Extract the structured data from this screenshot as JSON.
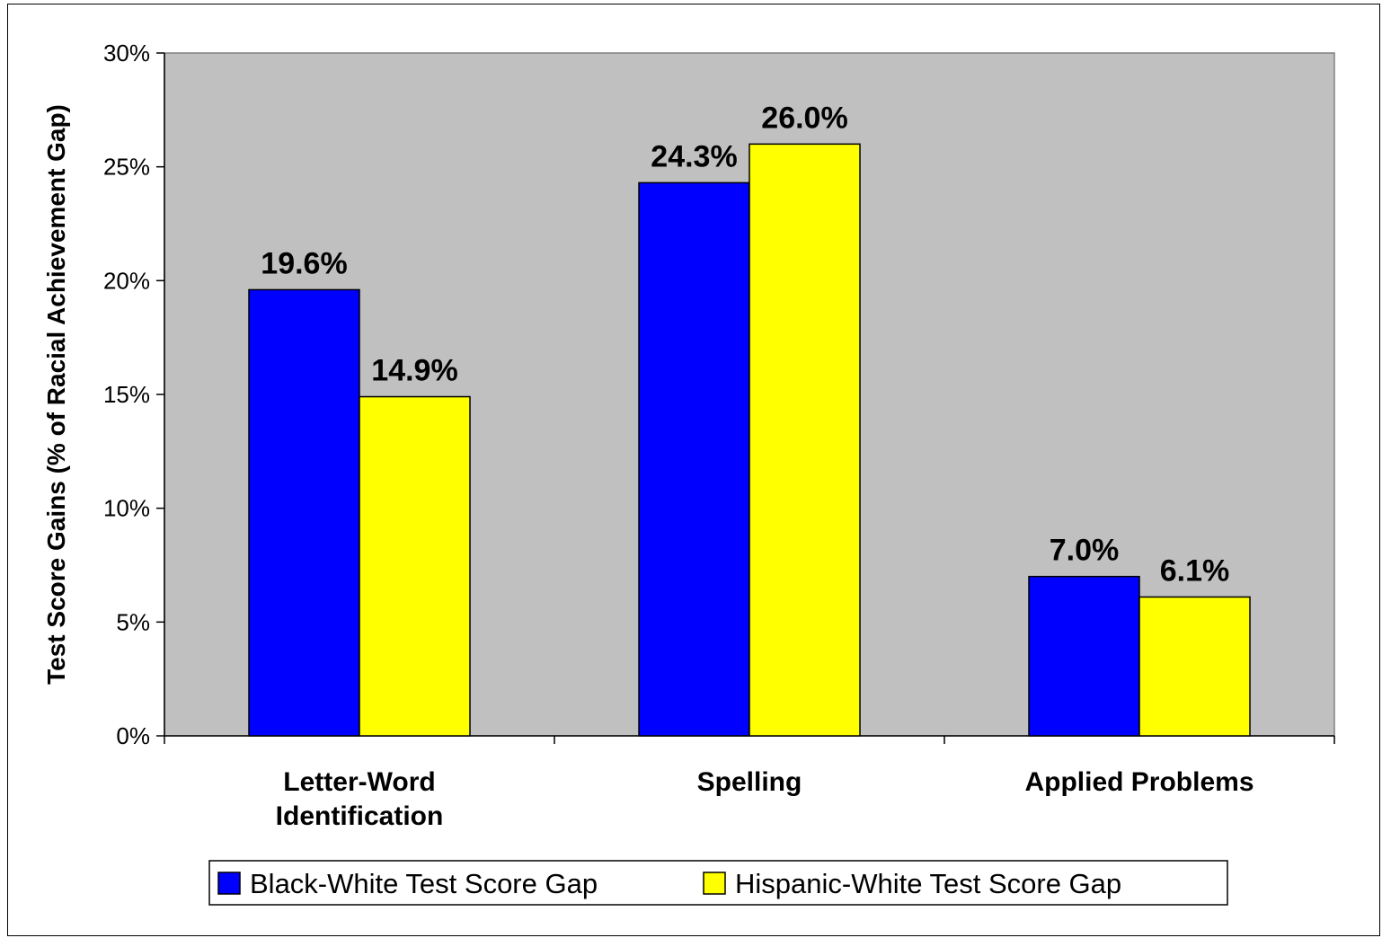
{
  "chart_data": {
    "type": "bar",
    "title": "",
    "xlabel": "",
    "ylabel": "Test Score Gains (% of Racial Achievement Gap)",
    "categories": [
      [
        "Letter-Word",
        "Identification"
      ],
      [
        "Spelling"
      ],
      [
        "Applied Problems"
      ]
    ],
    "series": [
      {
        "name": "Black-White Test Score Gap",
        "color": "#0000ff",
        "values": [
          19.6,
          24.3,
          7.0
        ],
        "labels": [
          "19.6%",
          "24.3%",
          "7.0%"
        ]
      },
      {
        "name": "Hispanic-White Test Score Gap",
        "color": "#ffff00",
        "values": [
          14.9,
          26.0,
          6.1
        ],
        "labels": [
          "14.9%",
          "26.0%",
          "6.1%"
        ]
      }
    ],
    "ylim": [
      0,
      30
    ],
    "yticks": [
      0,
      5,
      10,
      15,
      20,
      25,
      30
    ],
    "ytick_labels": [
      "0%",
      "5%",
      "10%",
      "15%",
      "20%",
      "25%",
      "30%"
    ],
    "plot_background": "#c0c0c0",
    "grid": false,
    "legend_position": "bottom"
  }
}
